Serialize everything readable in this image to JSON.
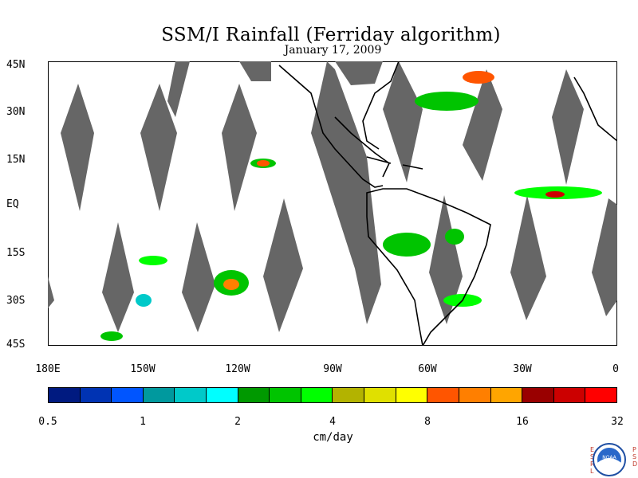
{
  "title": "SSM/I Rainfall (Ferriday algorithm)",
  "subtitle": "January 17, 2009",
  "lat_labels": [
    "45N",
    "30N",
    "15N",
    "EQ",
    "15S",
    "30S",
    "45S"
  ],
  "lon_labels": [
    "180E",
    "150W",
    "120W",
    "90W",
    "60W",
    "30W",
    "0"
  ],
  "colorbar": {
    "colors": [
      "#001a80",
      "#0033b3",
      "#0055ff",
      "#00999e",
      "#00c9c9",
      "#00ffff",
      "#009900",
      "#00c400",
      "#00ff00",
      "#b3b300",
      "#e0e000",
      "#ffff00",
      "#ff5500",
      "#ff7f00",
      "#ffa500",
      "#990000",
      "#cc0000",
      "#ff0000"
    ],
    "tick_labels": [
      "0.5",
      "1",
      "2",
      "4",
      "8",
      "16",
      "32"
    ],
    "units": "cm/day"
  },
  "logo": {
    "left_letters": "ESRL",
    "right_letters": "PSD",
    "emblem_text": "NOAA"
  },
  "colors": {
    "gap": "#666666",
    "coast": "#000000"
  }
}
